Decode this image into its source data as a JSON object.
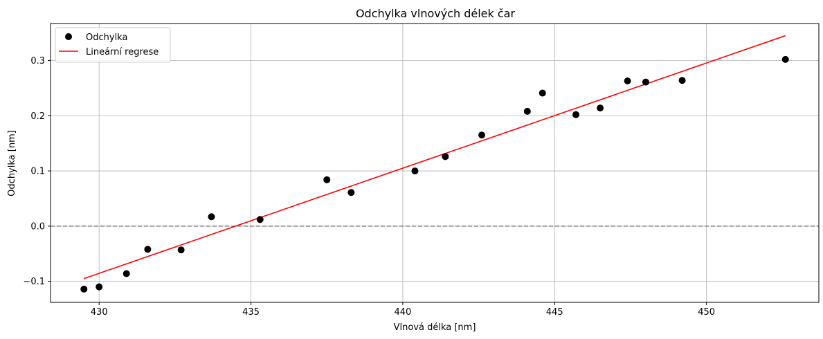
{
  "chart_data": {
    "type": "scatter",
    "title": "Odchylka vlnových délek čar",
    "xlabel": "Vlnová délka [nm]",
    "ylabel": "Odchylka [nm]",
    "xlim": [
      428.4,
      453.7
    ],
    "ylim": [
      -0.138,
      0.367
    ],
    "xticks": [
      430,
      435,
      440,
      445,
      450
    ],
    "yticks": [
      -0.1,
      0.0,
      0.1,
      0.2,
      0.3
    ],
    "ytick_labels": [
      "−0.1",
      "0.0",
      "0.1",
      "0.2",
      "0.3"
    ],
    "grid": true,
    "legend_position": "top-left",
    "reference_line": {
      "y": 0,
      "style": "dashed",
      "color": "#808080"
    },
    "series": [
      {
        "name": "Odchylka",
        "kind": "scatter",
        "color": "#000000",
        "points": [
          [
            429.5,
            -0.114
          ],
          [
            430.0,
            -0.11
          ],
          [
            430.9,
            -0.086
          ],
          [
            431.6,
            -0.042
          ],
          [
            432.7,
            -0.043
          ],
          [
            433.7,
            0.017
          ],
          [
            435.3,
            0.012
          ],
          [
            437.5,
            0.084
          ],
          [
            438.3,
            0.061
          ],
          [
            440.4,
            0.1
          ],
          [
            441.4,
            0.126
          ],
          [
            442.6,
            0.165
          ],
          [
            444.1,
            0.208
          ],
          [
            444.6,
            0.241
          ],
          [
            445.7,
            0.202
          ],
          [
            446.5,
            0.214
          ],
          [
            447.4,
            0.263
          ],
          [
            448.0,
            0.261
          ],
          [
            449.2,
            0.264
          ],
          [
            452.6,
            0.302
          ]
        ]
      },
      {
        "name": "Lineární regrese",
        "kind": "line",
        "color": "#ff0000",
        "points": [
          [
            429.5,
            -0.095
          ],
          [
            452.6,
            0.345
          ]
        ]
      }
    ]
  }
}
